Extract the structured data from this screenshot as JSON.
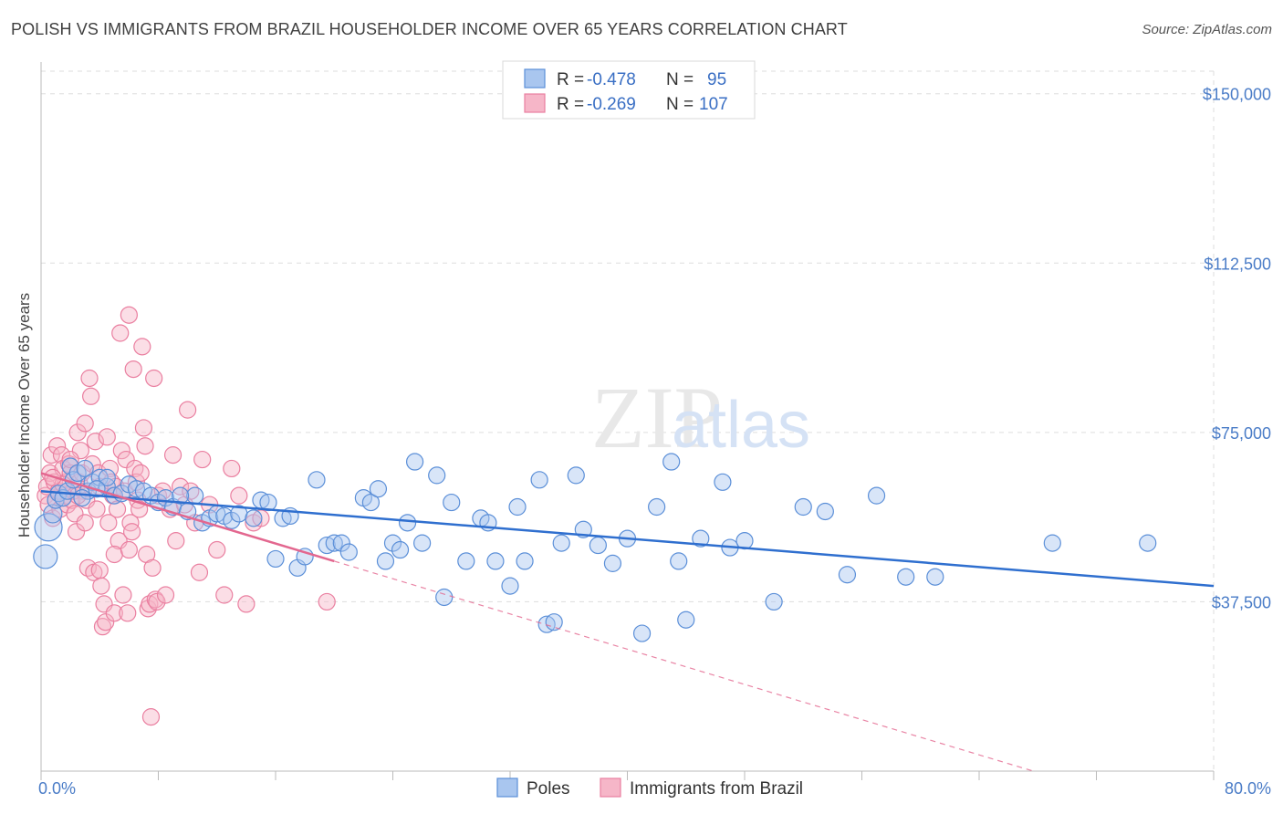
{
  "title": "POLISH VS IMMIGRANTS FROM BRAZIL HOUSEHOLDER INCOME OVER 65 YEARS CORRELATION CHART",
  "source": "Source: ZipAtlas.com",
  "watermark": {
    "zip": "ZIP",
    "atlas": "atlas"
  },
  "colors": {
    "poles_fill": "#a9c6ef",
    "poles_stroke": "#5b8fd8",
    "poles_line": "#2f6fcf",
    "brazil_fill": "#f6b6c8",
    "brazil_stroke": "#ea7fa0",
    "brazil_line": "#e3678f",
    "tick_text": "#4a7cc7",
    "grid": "#dddddd"
  },
  "legend": {
    "rows": [
      {
        "r_label": "R =",
        "r_value": "-0.478",
        "n_label": "N =",
        "n_value": "95"
      },
      {
        "r_label": "R =",
        "r_value": "-0.269",
        "n_label": "N =",
        "n_value": "107"
      }
    ],
    "bottom": [
      "Poles",
      "Immigrants from Brazil"
    ]
  },
  "chart_data": {
    "type": "scatter",
    "title": "POLISH VS IMMIGRANTS FROM BRAZIL HOUSEHOLDER INCOME OVER 65 YEARS CORRELATION CHART",
    "xlabel": "",
    "ylabel": "Householder Income Over 65 years",
    "xlim": [
      0,
      80
    ],
    "ylim": [
      0,
      155000
    ],
    "x_tick_labels": [
      "0.0%",
      "80.0%"
    ],
    "y_ticks": [
      37500,
      75000,
      112500,
      150000
    ],
    "y_tick_labels": [
      "$37,500",
      "$75,000",
      "$112,500",
      "$150,000"
    ],
    "grid": true,
    "legend_position": "top-center",
    "series": [
      {
        "name": "Poles",
        "points": [
          [
            0.3,
            47500
          ],
          [
            0.5,
            54000
          ],
          [
            0.8,
            57000
          ],
          [
            1.0,
            60000
          ],
          [
            1.2,
            61500
          ],
          [
            1.5,
            60500
          ],
          [
            1.8,
            62000
          ],
          [
            2.0,
            67500
          ],
          [
            2.2,
            64500
          ],
          [
            2.5,
            66000
          ],
          [
            3.0,
            67000
          ],
          [
            3.2,
            62000
          ],
          [
            3.5,
            64000
          ],
          [
            4.0,
            65000
          ],
          [
            4.5,
            63000
          ],
          [
            5.0,
            61000
          ],
          [
            5.5,
            61500
          ],
          [
            6.0,
            63500
          ],
          [
            6.5,
            62500
          ],
          [
            7.0,
            62000
          ],
          [
            7.5,
            61000
          ],
          [
            8.0,
            59500
          ],
          [
            8.5,
            60500
          ],
          [
            9.0,
            58500
          ],
          [
            10.0,
            57500
          ],
          [
            10.5,
            61000
          ],
          [
            11.0,
            55000
          ],
          [
            11.5,
            56000
          ],
          [
            12.0,
            57000
          ],
          [
            12.5,
            56500
          ],
          [
            13.0,
            55500
          ],
          [
            13.5,
            57000
          ],
          [
            14.5,
            56000
          ],
          [
            15.0,
            60000
          ],
          [
            15.5,
            59500
          ],
          [
            16.0,
            47000
          ],
          [
            16.5,
            56000
          ],
          [
            17.0,
            56500
          ],
          [
            17.5,
            45000
          ],
          [
            18.0,
            47500
          ],
          [
            18.8,
            64500
          ],
          [
            19.5,
            50000
          ],
          [
            20.0,
            50500
          ],
          [
            20.5,
            50500
          ],
          [
            21.0,
            48500
          ],
          [
            22.0,
            60500
          ],
          [
            22.5,
            59500
          ],
          [
            23.0,
            62500
          ],
          [
            23.5,
            46500
          ],
          [
            24.0,
            50500
          ],
          [
            24.5,
            49000
          ],
          [
            25.0,
            55000
          ],
          [
            25.5,
            68500
          ],
          [
            26.0,
            50500
          ],
          [
            27.0,
            65500
          ],
          [
            27.5,
            38500
          ],
          [
            28.0,
            59500
          ],
          [
            29.0,
            46500
          ],
          [
            30.0,
            56000
          ],
          [
            30.5,
            55000
          ],
          [
            31.0,
            46500
          ],
          [
            32.0,
            41000
          ],
          [
            32.5,
            58500
          ],
          [
            33.0,
            46500
          ],
          [
            34.0,
            64500
          ],
          [
            34.5,
            32500
          ],
          [
            35.0,
            33000
          ],
          [
            35.5,
            50500
          ],
          [
            36.5,
            65500
          ],
          [
            37.0,
            53500
          ],
          [
            38.0,
            50000
          ],
          [
            39.0,
            46000
          ],
          [
            40.0,
            51500
          ],
          [
            41.0,
            30500
          ],
          [
            42.0,
            58500
          ],
          [
            43.0,
            68500
          ],
          [
            43.5,
            46500
          ],
          [
            44.0,
            33500
          ],
          [
            45.0,
            51500
          ],
          [
            46.5,
            64000
          ],
          [
            47.0,
            49500
          ],
          [
            48.0,
            51000
          ],
          [
            50.0,
            37500
          ],
          [
            52.0,
            58500
          ],
          [
            53.5,
            57500
          ],
          [
            55.0,
            43500
          ],
          [
            57.0,
            61000
          ],
          [
            59.0,
            43000
          ],
          [
            61.0,
            43000
          ],
          [
            69.0,
            50500
          ],
          [
            75.5,
            50500
          ],
          [
            4.5,
            65000
          ],
          [
            9.5,
            61000
          ],
          [
            3.8,
            62500
          ],
          [
            2.8,
            60500
          ]
        ],
        "sizes": [
          [
            0,
            26
          ],
          [
            1,
            30
          ],
          [
            2,
            20
          ]
        ],
        "trend": [
          [
            0,
            62000
          ],
          [
            80,
            41000
          ]
        ]
      },
      {
        "name": "Immigrants from Brazil",
        "points": [
          [
            0.3,
            61000
          ],
          [
            0.4,
            63000
          ],
          [
            0.5,
            59000
          ],
          [
            0.6,
            66000
          ],
          [
            0.7,
            70000
          ],
          [
            0.8,
            56000
          ],
          [
            0.9,
            64000
          ],
          [
            1.0,
            60000
          ],
          [
            1.1,
            72000
          ],
          [
            1.2,
            62000
          ],
          [
            1.3,
            58000
          ],
          [
            1.4,
            70000
          ],
          [
            1.5,
            67000
          ],
          [
            1.6,
            61000
          ],
          [
            1.7,
            64000
          ],
          [
            1.8,
            59000
          ],
          [
            1.9,
            68000
          ],
          [
            2.0,
            66000
          ],
          [
            2.1,
            60000
          ],
          [
            2.2,
            62000
          ],
          [
            2.3,
            57000
          ],
          [
            2.4,
            53000
          ],
          [
            2.5,
            75000
          ],
          [
            2.6,
            64000
          ],
          [
            2.7,
            71000
          ],
          [
            2.8,
            66000
          ],
          [
            2.9,
            62000
          ],
          [
            3.0,
            77000
          ],
          [
            3.1,
            60000
          ],
          [
            3.2,
            45000
          ],
          [
            3.3,
            87000
          ],
          [
            3.4,
            83000
          ],
          [
            3.5,
            68000
          ],
          [
            3.6,
            44000
          ],
          [
            3.7,
            73000
          ],
          [
            3.8,
            58000
          ],
          [
            3.9,
            66000
          ],
          [
            4.0,
            63000
          ],
          [
            4.1,
            41000
          ],
          [
            4.2,
            32000
          ],
          [
            4.3,
            37000
          ],
          [
            4.4,
            33000
          ],
          [
            4.5,
            74000
          ],
          [
            4.6,
            55000
          ],
          [
            4.7,
            67000
          ],
          [
            4.8,
            64000
          ],
          [
            4.9,
            61000
          ],
          [
            5.0,
            35000
          ],
          [
            5.1,
            63000
          ],
          [
            5.2,
            58000
          ],
          [
            5.3,
            51000
          ],
          [
            5.4,
            97000
          ],
          [
            5.5,
            71000
          ],
          [
            5.6,
            39000
          ],
          [
            5.7,
            62000
          ],
          [
            5.8,
            69000
          ],
          [
            5.9,
            35000
          ],
          [
            6.0,
            101000
          ],
          [
            6.1,
            55000
          ],
          [
            6.2,
            53000
          ],
          [
            6.3,
            89000
          ],
          [
            6.4,
            67000
          ],
          [
            6.5,
            64000
          ],
          [
            6.6,
            60000
          ],
          [
            6.7,
            58000
          ],
          [
            6.8,
            66000
          ],
          [
            6.9,
            94000
          ],
          [
            7.0,
            76000
          ],
          [
            7.1,
            72000
          ],
          [
            7.2,
            48000
          ],
          [
            7.3,
            36000
          ],
          [
            7.4,
            37000
          ],
          [
            7.5,
            12000
          ],
          [
            7.6,
            45000
          ],
          [
            7.7,
            87000
          ],
          [
            7.8,
            38000
          ],
          [
            7.9,
            37500
          ],
          [
            8.0,
            61000
          ],
          [
            8.3,
            62000
          ],
          [
            8.5,
            39000
          ],
          [
            8.8,
            58000
          ],
          [
            9.0,
            70000
          ],
          [
            9.2,
            51000
          ],
          [
            9.5,
            63000
          ],
          [
            9.8,
            59000
          ],
          [
            10.0,
            80000
          ],
          [
            10.2,
            62000
          ],
          [
            10.5,
            55000
          ],
          [
            10.8,
            44000
          ],
          [
            11.0,
            69000
          ],
          [
            11.5,
            59000
          ],
          [
            12.0,
            49000
          ],
          [
            12.5,
            39000
          ],
          [
            13.0,
            67000
          ],
          [
            13.5,
            61000
          ],
          [
            14.0,
            37000
          ],
          [
            14.5,
            55000
          ],
          [
            15.0,
            56000
          ],
          [
            1.5,
            63500
          ],
          [
            2.0,
            69000
          ],
          [
            0.8,
            65000
          ],
          [
            3.0,
            55000
          ],
          [
            4.0,
            44500
          ],
          [
            5.0,
            48000
          ],
          [
            6.0,
            49000
          ],
          [
            19.5,
            37500
          ],
          [
            2.5,
            61000
          ]
        ],
        "trend_solid": [
          [
            0,
            66000
          ],
          [
            20,
            46500
          ]
        ],
        "trend_dashed": [
          [
            20,
            46500
          ],
          [
            80,
            -12000
          ]
        ]
      }
    ]
  }
}
